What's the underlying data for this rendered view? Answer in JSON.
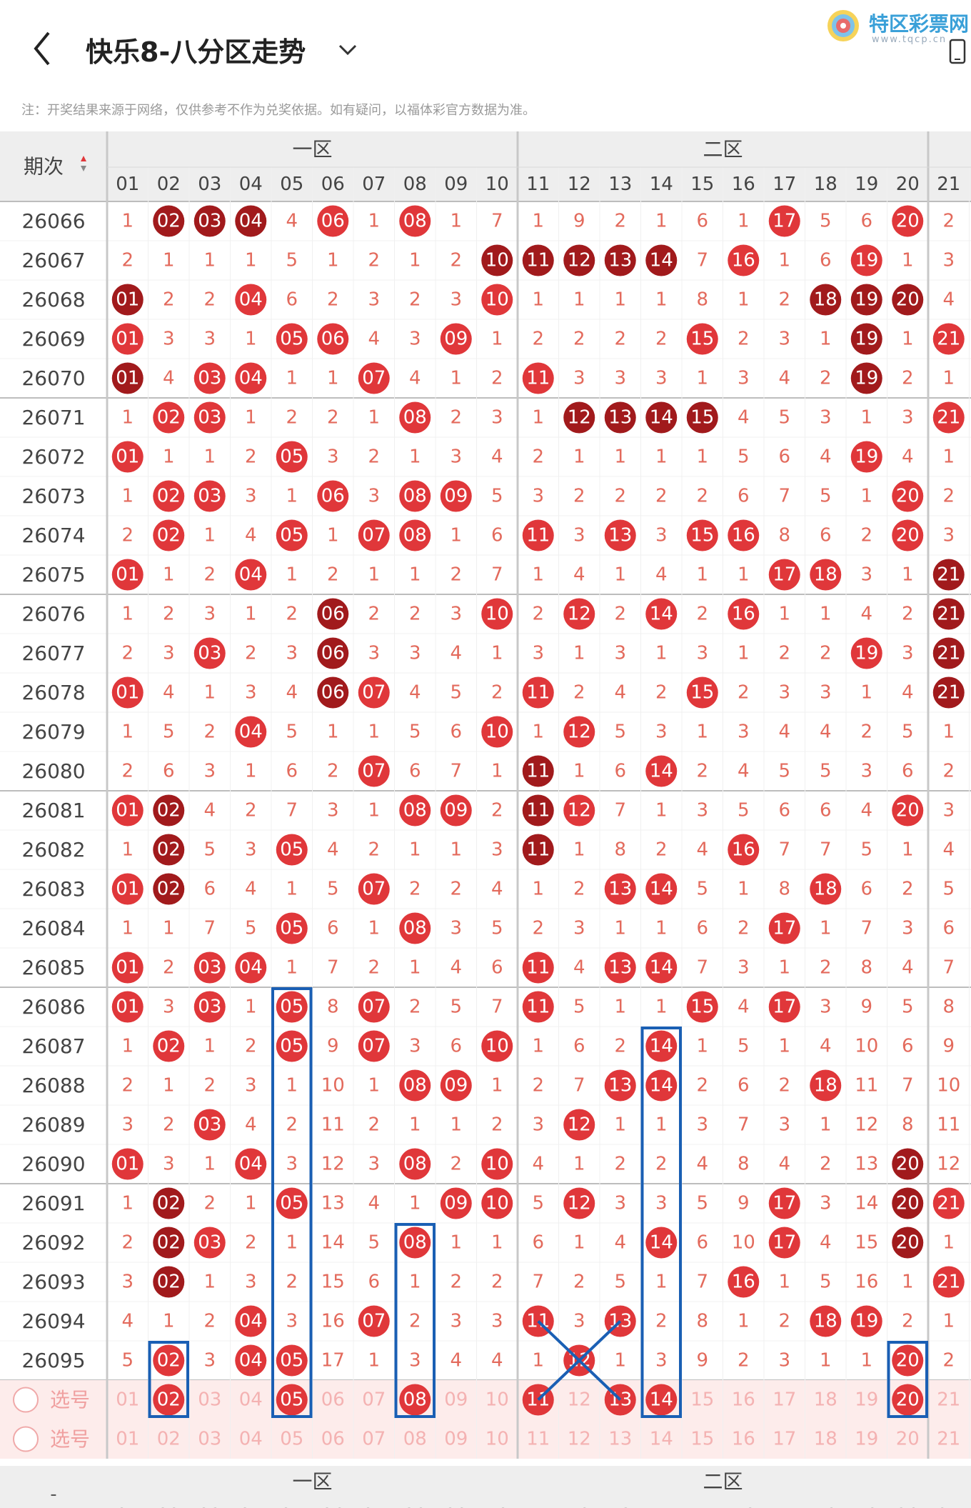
{
  "header": {
    "title": "快乐8-八分区走势",
    "logo_text": "特区彩票网",
    "logo_url": "www.tqcp.cn",
    "note": "注：开奖结果来源于网络，仅供参考不作为兑奖依据。如有疑问，以福体彩官方数据为准。"
  },
  "table": {
    "period_header": "期次",
    "zones": [
      "一区",
      "二区"
    ],
    "columns": [
      "01",
      "02",
      "03",
      "04",
      "05",
      "06",
      "07",
      "08",
      "09",
      "10",
      "11",
      "12",
      "13",
      "14",
      "15",
      "16",
      "17",
      "18",
      "19",
      "20",
      "21"
    ],
    "rows": [
      {
        "period": "26066",
        "cells": [
          "1",
          "02",
          "03",
          "04",
          "4",
          "06",
          "1",
          "08",
          "1",
          "7",
          "1",
          "9",
          "2",
          "1",
          "6",
          "1",
          "17",
          "5",
          "6",
          "20",
          "2"
        ]
      },
      {
        "period": "26067",
        "cells": [
          "2",
          "1",
          "1",
          "1",
          "5",
          "1",
          "2",
          "1",
          "2",
          "10",
          "11",
          "12",
          "13",
          "14",
          "7",
          "16",
          "1",
          "6",
          "19",
          "1",
          "3"
        ]
      },
      {
        "period": "26068",
        "cells": [
          "01",
          "2",
          "2",
          "04",
          "6",
          "2",
          "3",
          "2",
          "3",
          "10",
          "1",
          "1",
          "1",
          "1",
          "8",
          "1",
          "2",
          "18",
          "19",
          "20",
          "4"
        ]
      },
      {
        "period": "26069",
        "cells": [
          "01",
          "3",
          "3",
          "1",
          "05",
          "06",
          "4",
          "3",
          "09",
          "1",
          "2",
          "2",
          "2",
          "2",
          "15",
          "2",
          "3",
          "1",
          "19",
          "1",
          "21"
        ]
      },
      {
        "period": "26070",
        "cells": [
          "01",
          "4",
          "03",
          "04",
          "1",
          "1",
          "07",
          "4",
          "1",
          "2",
          "11",
          "3",
          "3",
          "3",
          "1",
          "3",
          "4",
          "2",
          "19",
          "2",
          "1"
        ]
      },
      {
        "period": "26071",
        "cells": [
          "1",
          "02",
          "03",
          "1",
          "2",
          "2",
          "1",
          "08",
          "2",
          "3",
          "1",
          "12",
          "13",
          "14",
          "15",
          "4",
          "5",
          "3",
          "1",
          "3",
          "21"
        ]
      },
      {
        "period": "26072",
        "cells": [
          "01",
          "1",
          "1",
          "2",
          "05",
          "3",
          "2",
          "1",
          "3",
          "4",
          "2",
          "1",
          "1",
          "1",
          "1",
          "5",
          "6",
          "4",
          "19",
          "4",
          "1"
        ]
      },
      {
        "period": "26073",
        "cells": [
          "1",
          "02",
          "03",
          "3",
          "1",
          "06",
          "3",
          "08",
          "09",
          "5",
          "3",
          "2",
          "2",
          "2",
          "2",
          "6",
          "7",
          "5",
          "1",
          "20",
          "2"
        ]
      },
      {
        "period": "26074",
        "cells": [
          "2",
          "02",
          "1",
          "4",
          "05",
          "1",
          "07",
          "08",
          "1",
          "6",
          "11",
          "3",
          "13",
          "3",
          "15",
          "16",
          "8",
          "6",
          "2",
          "20",
          "3"
        ]
      },
      {
        "period": "26075",
        "cells": [
          "01",
          "1",
          "2",
          "04",
          "1",
          "2",
          "1",
          "1",
          "2",
          "7",
          "1",
          "4",
          "1",
          "4",
          "1",
          "1",
          "17",
          "18",
          "3",
          "1",
          "21"
        ]
      },
      {
        "period": "26076",
        "cells": [
          "1",
          "2",
          "3",
          "1",
          "2",
          "06",
          "2",
          "2",
          "3",
          "10",
          "2",
          "12",
          "2",
          "14",
          "2",
          "16",
          "1",
          "1",
          "4",
          "2",
          "21"
        ]
      },
      {
        "period": "26077",
        "cells": [
          "2",
          "3",
          "03",
          "2",
          "3",
          "06",
          "3",
          "3",
          "4",
          "1",
          "3",
          "1",
          "3",
          "1",
          "3",
          "1",
          "2",
          "2",
          "19",
          "3",
          "21"
        ]
      },
      {
        "period": "26078",
        "cells": [
          "01",
          "4",
          "1",
          "3",
          "4",
          "06",
          "07",
          "4",
          "5",
          "2",
          "11",
          "2",
          "4",
          "2",
          "15",
          "2",
          "3",
          "3",
          "1",
          "4",
          "21"
        ]
      },
      {
        "period": "26079",
        "cells": [
          "1",
          "5",
          "2",
          "04",
          "5",
          "1",
          "1",
          "5",
          "6",
          "10",
          "1",
          "12",
          "5",
          "3",
          "1",
          "3",
          "4",
          "4",
          "2",
          "5",
          "1"
        ]
      },
      {
        "period": "26080",
        "cells": [
          "2",
          "6",
          "3",
          "1",
          "6",
          "2",
          "07",
          "6",
          "7",
          "1",
          "11",
          "1",
          "6",
          "14",
          "2",
          "4",
          "5",
          "5",
          "3",
          "6",
          "2"
        ]
      },
      {
        "period": "26081",
        "cells": [
          "01",
          "02",
          "4",
          "2",
          "7",
          "3",
          "1",
          "08",
          "09",
          "2",
          "11",
          "12",
          "7",
          "1",
          "3",
          "5",
          "6",
          "6",
          "4",
          "20",
          "3"
        ]
      },
      {
        "period": "26082",
        "cells": [
          "1",
          "02",
          "5",
          "3",
          "05",
          "4",
          "2",
          "1",
          "1",
          "3",
          "11",
          "1",
          "8",
          "2",
          "4",
          "16",
          "7",
          "7",
          "5",
          "1",
          "4"
        ]
      },
      {
        "period": "26083",
        "cells": [
          "01",
          "02",
          "6",
          "4",
          "1",
          "5",
          "07",
          "2",
          "2",
          "4",
          "1",
          "2",
          "13",
          "14",
          "5",
          "1",
          "8",
          "18",
          "6",
          "2",
          "5"
        ]
      },
      {
        "period": "26084",
        "cells": [
          "1",
          "1",
          "7",
          "5",
          "05",
          "6",
          "1",
          "08",
          "3",
          "5",
          "2",
          "3",
          "1",
          "1",
          "6",
          "2",
          "17",
          "1",
          "7",
          "3",
          "6"
        ]
      },
      {
        "period": "26085",
        "cells": [
          "01",
          "2",
          "03",
          "04",
          "1",
          "7",
          "2",
          "1",
          "4",
          "6",
          "11",
          "4",
          "13",
          "14",
          "7",
          "3",
          "1",
          "2",
          "8",
          "4",
          "7"
        ]
      },
      {
        "period": "26086",
        "cells": [
          "01",
          "3",
          "03",
          "1",
          "05",
          "8",
          "07",
          "2",
          "5",
          "7",
          "11",
          "5",
          "1",
          "1",
          "15",
          "4",
          "17",
          "3",
          "9",
          "5",
          "8"
        ]
      },
      {
        "period": "26087",
        "cells": [
          "1",
          "02",
          "1",
          "2",
          "05",
          "9",
          "07",
          "3",
          "6",
          "10",
          "1",
          "6",
          "2",
          "14",
          "1",
          "5",
          "1",
          "4",
          "10",
          "6",
          "9"
        ]
      },
      {
        "period": "26088",
        "cells": [
          "2",
          "1",
          "2",
          "3",
          "1",
          "10",
          "1",
          "08",
          "09",
          "1",
          "2",
          "7",
          "13",
          "14",
          "2",
          "6",
          "2",
          "18",
          "11",
          "7",
          "10"
        ]
      },
      {
        "period": "26089",
        "cells": [
          "3",
          "2",
          "03",
          "4",
          "2",
          "11",
          "2",
          "1",
          "1",
          "2",
          "3",
          "12",
          "1",
          "1",
          "3",
          "7",
          "3",
          "1",
          "12",
          "8",
          "11"
        ]
      },
      {
        "period": "26090",
        "cells": [
          "01",
          "3",
          "1",
          "04",
          "3",
          "12",
          "3",
          "08",
          "2",
          "10",
          "4",
          "1",
          "2",
          "2",
          "4",
          "8",
          "4",
          "2",
          "13",
          "20",
          "12"
        ]
      },
      {
        "period": "26091",
        "cells": [
          "1",
          "02",
          "2",
          "1",
          "05",
          "13",
          "4",
          "1",
          "09",
          "10",
          "5",
          "12",
          "3",
          "3",
          "5",
          "9",
          "17",
          "3",
          "14",
          "20",
          "21"
        ]
      },
      {
        "period": "26092",
        "cells": [
          "2",
          "02",
          "03",
          "2",
          "1",
          "14",
          "5",
          "08",
          "1",
          "1",
          "6",
          "1",
          "4",
          "14",
          "6",
          "10",
          "17",
          "4",
          "15",
          "20",
          "1"
        ]
      },
      {
        "period": "26093",
        "cells": [
          "3",
          "02",
          "1",
          "3",
          "2",
          "15",
          "6",
          "1",
          "2",
          "2",
          "7",
          "2",
          "5",
          "1",
          "7",
          "16",
          "1",
          "5",
          "16",
          "1",
          "21"
        ]
      },
      {
        "period": "26094",
        "cells": [
          "4",
          "1",
          "2",
          "04",
          "3",
          "16",
          "07",
          "2",
          "3",
          "3",
          "11",
          "3",
          "13",
          "2",
          "8",
          "1",
          "2",
          "18",
          "19",
          "2",
          "1"
        ]
      },
      {
        "period": "26095",
        "cells": [
          "5",
          "02",
          "3",
          "04",
          "05",
          "17",
          "1",
          "3",
          "4",
          "4",
          "1",
          "12",
          "1",
          "3",
          "9",
          "2",
          "3",
          "1",
          "1",
          "20",
          "2"
        ]
      }
    ],
    "select_rows": [
      {
        "label": "选号",
        "cells": [
          "01",
          "02",
          "03",
          "04",
          "05",
          "06",
          "07",
          "08",
          "09",
          "10",
          "11",
          "12",
          "13",
          "14",
          "15",
          "16",
          "17",
          "18",
          "19",
          "20",
          "21"
        ]
      },
      {
        "label": "选号",
        "cells": [
          "01",
          "02",
          "03",
          "04",
          "05",
          "06",
          "07",
          "08",
          "09",
          "10",
          "11",
          "12",
          "13",
          "14",
          "15",
          "16",
          "17",
          "18",
          "19",
          "20",
          "21"
        ]
      }
    ],
    "selected": [
      "02",
      "05",
      "08",
      "11",
      "13",
      "14",
      "20"
    ],
    "footer_period": "-",
    "footer_zones": [
      "一区",
      "二区"
    ]
  },
  "dark_balls": [
    "26066:02",
    "26066:03",
    "26066:04",
    "26067:10",
    "26067:11",
    "26067:12",
    "26067:13",
    "26067:14",
    "26068:01",
    "26068:18",
    "26068:19",
    "26068:20",
    "26069:19",
    "26070:01",
    "26070:19",
    "26071:12",
    "26071:13",
    "26071:14",
    "26071:15",
    "26075:21",
    "26076:06",
    "26076:21",
    "26077:06",
    "26077:21",
    "26078:06",
    "26078:21",
    "26080:11",
    "26081:02",
    "26081:11",
    "26082:02",
    "26082:11",
    "26083:02",
    "26090:20",
    "26091:02",
    "26091:20",
    "26092:02",
    "26092:20",
    "26093:02"
  ],
  "annotations": {
    "boxed_columns": [
      "02",
      "05",
      "08",
      "14",
      "20"
    ],
    "crossed_numbers": [
      "11",
      "12",
      "13"
    ]
  },
  "colors": {
    "ball_red": "#e0373a",
    "ball_dark": "#a11a1c",
    "header_bg": "#eeeeee",
    "select_row_bg": "#fdeceb",
    "miss_text": "#e36a5c",
    "annotation_blue": "#1a5fb4"
  },
  "icons": [
    "back-arrow-icon",
    "chevron-down-icon",
    "logo-swirl-icon",
    "device-icon",
    "sort-arrows-icon",
    "radio-circle-icon"
  ]
}
